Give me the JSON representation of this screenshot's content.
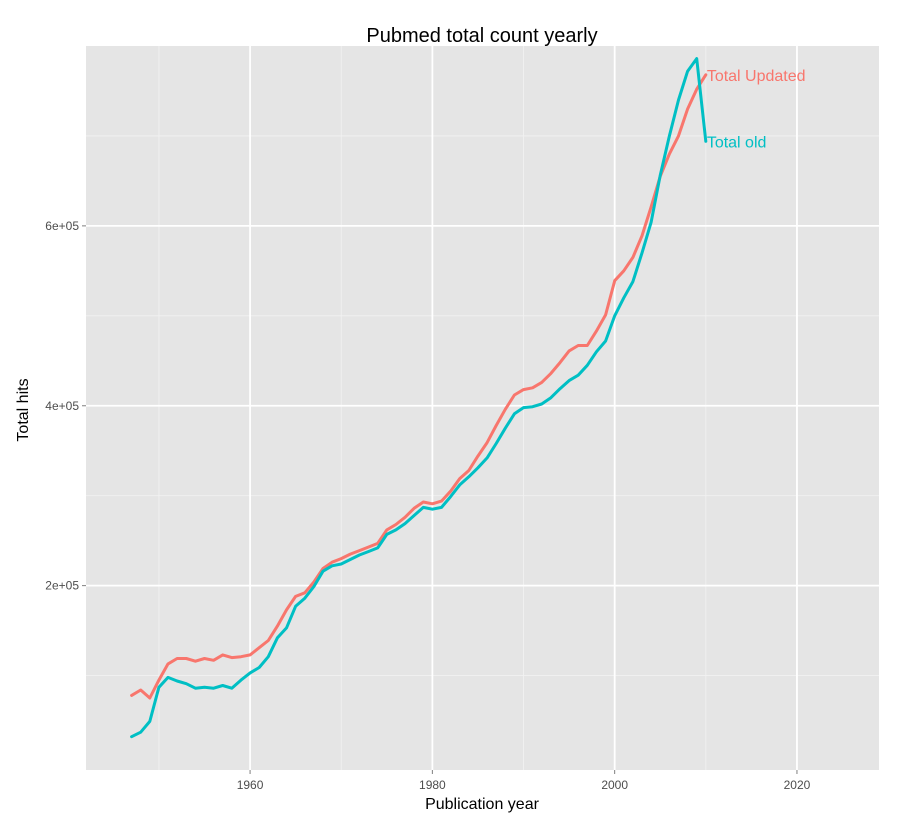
{
  "chart_data": {
    "type": "line",
    "title": "Pubmed total count yearly",
    "xlabel": "Publication year",
    "ylabel": "Total hits",
    "xlim": [
      1942,
      2029
    ],
    "ylim": [
      -5000,
      800000
    ],
    "grid": true,
    "x_ticks": [
      1960,
      1980,
      2000,
      2020
    ],
    "x_tick_labels": [
      "1960",
      "1980",
      "2000",
      "2020"
    ],
    "y_ticks": [
      200000,
      400000,
      600000
    ],
    "y_tick_labels": [
      "2e+05",
      "4e+05",
      "6e+05"
    ],
    "series": [
      {
        "name": "Total Updated",
        "color": "#F8766D",
        "x": [
          1947,
          1948,
          1949,
          1950,
          1951,
          1952,
          1953,
          1954,
          1955,
          1956,
          1957,
          1958,
          1959,
          1960,
          1961,
          1962,
          1963,
          1964,
          1965,
          1966,
          1967,
          1968,
          1969,
          1970,
          1971,
          1972,
          1973,
          1974,
          1975,
          1976,
          1977,
          1978,
          1979,
          1980,
          1981,
          1982,
          1983,
          1984,
          1985,
          1986,
          1987,
          1988,
          1989,
          1990,
          1991,
          1992,
          1993,
          1994,
          1995,
          1996,
          1997,
          1998,
          1999,
          2000,
          2001,
          2002,
          2003,
          2004,
          2005,
          2006,
          2007,
          2008,
          2009,
          2010
        ],
        "y": [
          78000,
          84000,
          75000,
          95000,
          113000,
          119000,
          119000,
          116000,
          119000,
          117000,
          123000,
          120000,
          121000,
          123000,
          131000,
          139000,
          155000,
          173000,
          188000,
          192000,
          204000,
          219000,
          226000,
          230000,
          235000,
          239000,
          243000,
          247000,
          262000,
          268000,
          276000,
          286000,
          293000,
          291000,
          294000,
          305000,
          319000,
          328000,
          344000,
          359000,
          378000,
          396000,
          412000,
          418000,
          420000,
          426000,
          436000,
          448000,
          461000,
          467000,
          467000,
          483000,
          501000,
          539000,
          550000,
          565000,
          589000,
          621000,
          655000,
          680000,
          700000,
          730000,
          752000,
          768000
        ]
      },
      {
        "name": "Total old",
        "color": "#00BFC4",
        "x": [
          1947,
          1948,
          1949,
          1950,
          1951,
          1952,
          1953,
          1954,
          1955,
          1956,
          1957,
          1958,
          1959,
          1960,
          1961,
          1962,
          1963,
          1964,
          1965,
          1966,
          1967,
          1968,
          1969,
          1970,
          1971,
          1972,
          1973,
          1974,
          1975,
          1976,
          1977,
          1978,
          1979,
          1980,
          1981,
          1982,
          1983,
          1984,
          1985,
          1986,
          1987,
          1988,
          1989,
          1990,
          1991,
          1992,
          1993,
          1994,
          1995,
          1996,
          1997,
          1998,
          1999,
          2000,
          2001,
          2002,
          2003,
          2004,
          2005,
          2006,
          2007,
          2008,
          2009,
          2010
        ],
        "y": [
          32000,
          37000,
          49000,
          87000,
          98000,
          94000,
          91000,
          86000,
          87000,
          86000,
          89000,
          86000,
          95000,
          103000,
          109000,
          121000,
          142000,
          153000,
          177000,
          186000,
          199000,
          216000,
          222000,
          224000,
          229000,
          234000,
          238000,
          242000,
          257000,
          262000,
          269000,
          278000,
          287000,
          285000,
          287000,
          299000,
          312000,
          321000,
          331000,
          342000,
          358000,
          375000,
          391000,
          398000,
          399000,
          402000,
          409000,
          419000,
          428000,
          434000,
          445000,
          460000,
          472000,
          500000,
          520000,
          538000,
          570000,
          604000,
          656000,
          700000,
          740000,
          772000,
          786000,
          694000
        ]
      }
    ]
  }
}
